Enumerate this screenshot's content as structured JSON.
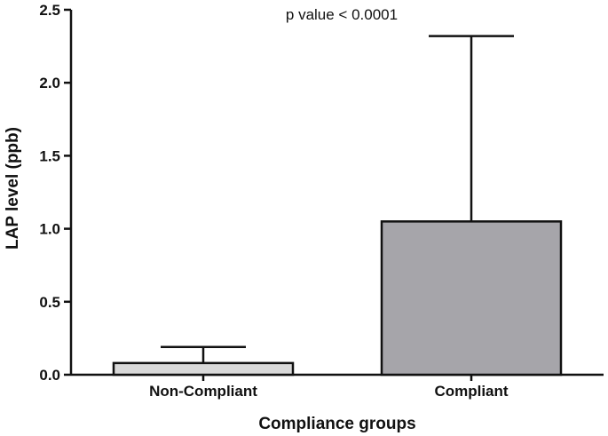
{
  "chart_data": {
    "type": "bar",
    "categories": [
      "Non-Compliant",
      "Compliant"
    ],
    "values": [
      0.08,
      1.05
    ],
    "error_upper": [
      0.19,
      2.32
    ],
    "xlabel": "Compliance groups",
    "ylabel": "LAP level (ppb)",
    "ylim": [
      0,
      2.5
    ],
    "yticks": [
      "0.0",
      "0.5",
      "1.0",
      "1.5",
      "2.0",
      "2.5"
    ],
    "annotation": "p value < 0.0001",
    "bar_colors": [
      "#d9d9d9",
      "#a6a5aa"
    ],
    "grid": false
  }
}
